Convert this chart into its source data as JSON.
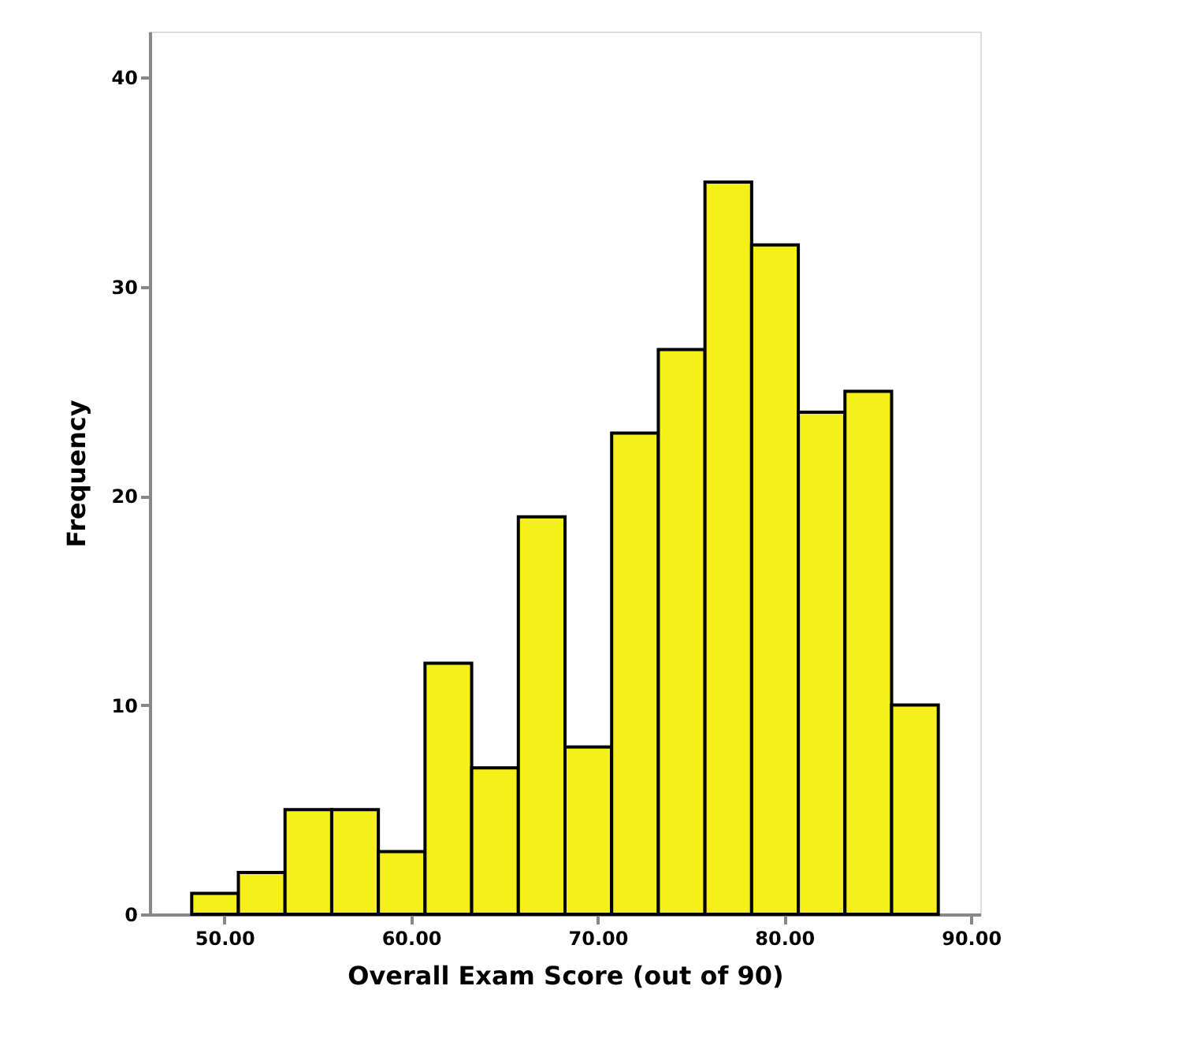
{
  "chart_data": {
    "type": "histogram",
    "xlabel": "Overall Exam Score (out of 90)",
    "ylabel": "Frequency",
    "bins": [
      48.25,
      50.75,
      53.25,
      55.75,
      58.25,
      60.75,
      63.25,
      65.75,
      68.25,
      70.75,
      73.25,
      75.75,
      78.25,
      80.75,
      83.25,
      85.75,
      88.25
    ],
    "values": [
      1,
      2,
      5,
      5,
      3,
      12,
      7,
      19,
      8,
      23,
      27,
      35,
      32,
      24,
      25,
      10
    ],
    "color": "#f5f01a",
    "xlim": [
      46,
      90.5
    ],
    "xticks": [
      {
        "value": 50,
        "label": "50.00"
      },
      {
        "value": 60,
        "label": "60.00"
      },
      {
        "value": 70,
        "label": "70.00"
      },
      {
        "value": 80,
        "label": "80.00"
      },
      {
        "value": 90,
        "label": "90.00"
      }
    ],
    "ylim": [
      0,
      42.2
    ],
    "yticks": [
      0,
      10,
      20,
      30,
      40
    ],
    "grid": false
  }
}
